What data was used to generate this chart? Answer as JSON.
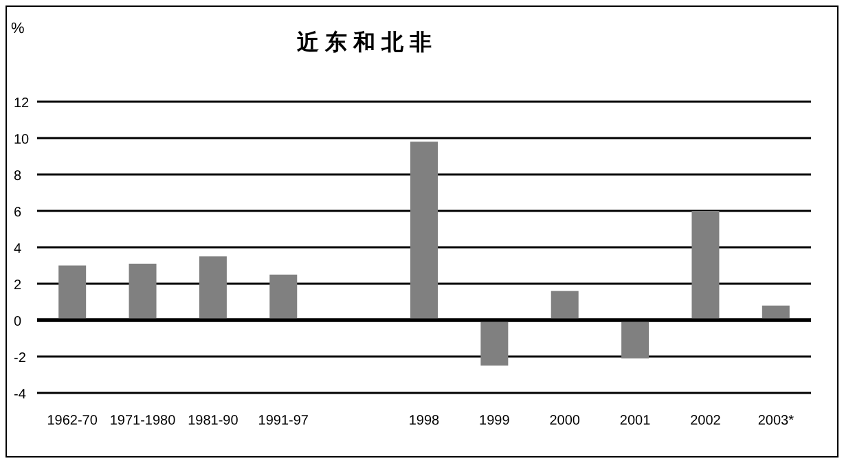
{
  "chart_data": {
    "type": "bar",
    "title": "近 东 和 北 非",
    "ylabel": "%",
    "categories": [
      "1962-70",
      "1971-1980",
      "1981-90",
      "1991-97",
      null,
      "1998",
      "1999",
      "2000",
      "2001",
      "2002",
      "2003*"
    ],
    "values": [
      3.0,
      3.1,
      3.5,
      2.5,
      null,
      9.8,
      -2.5,
      1.6,
      -2.1,
      6.0,
      0.8
    ],
    "color": "#808080",
    "ylim": [
      -4,
      12
    ],
    "yticks": [
      -4,
      -2,
      0,
      2,
      4,
      6,
      8,
      10,
      12
    ],
    "grid": "y"
  }
}
